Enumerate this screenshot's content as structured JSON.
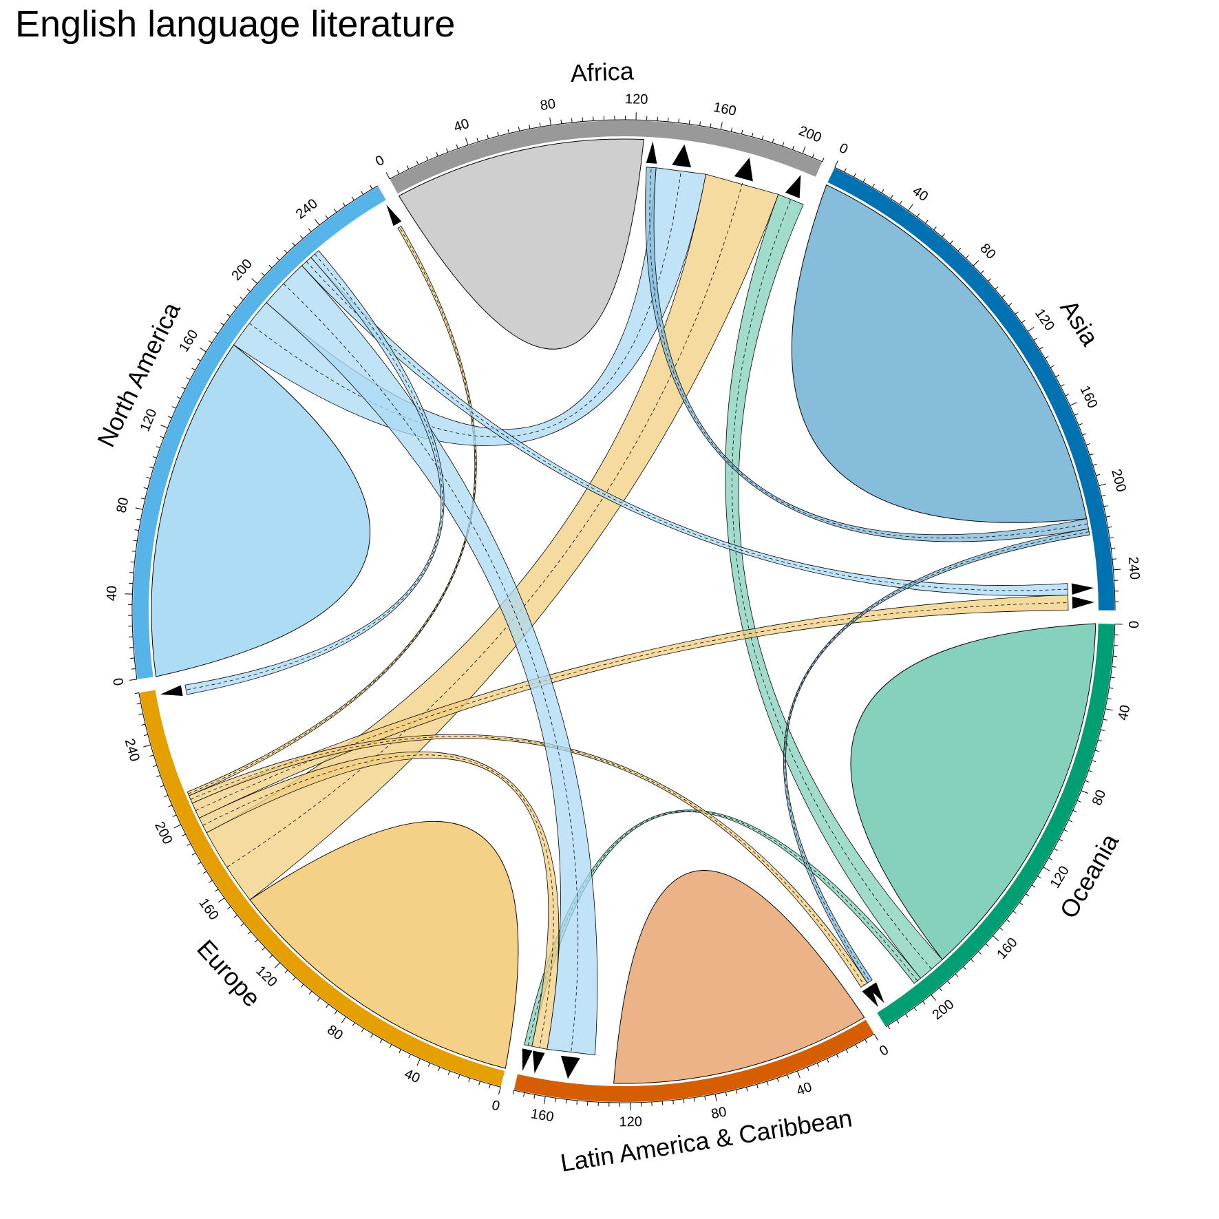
{
  "chart_data": {
    "type": "chord",
    "title": "English language literature",
    "colors": {
      "Oceania": "#009E73",
      "Latin America & Caribbean": "#D55E00",
      "Europe": "#E69F00",
      "North America": "#56B4E9",
      "Africa": "#999999",
      "Asia": "#0072B2"
    },
    "sectors": [
      {
        "name": "Oceania",
        "total": 226,
        "tick_labels": [
          "0",
          "40",
          "80",
          "120",
          "160",
          "200"
        ]
      },
      {
        "name": "Latin America & Caribbean",
        "total": 175,
        "tick_labels": [
          "0",
          "40",
          "80",
          "120",
          "160"
        ]
      },
      {
        "name": "Europe",
        "total": 265,
        "tick_labels": [
          "0",
          "40",
          "80",
          "120",
          "160",
          "200",
          "240"
        ]
      },
      {
        "name": "North America",
        "total": 273,
        "tick_labels": [
          "0",
          "40",
          "80",
          "120",
          "160",
          "200",
          "240"
        ]
      },
      {
        "name": "Africa",
        "total": 210,
        "tick_labels": [
          "0",
          "40",
          "80",
          "120",
          "160",
          "200"
        ]
      },
      {
        "name": "Asia",
        "total": 259,
        "tick_labels": [
          "0",
          "40",
          "80",
          "120",
          "160",
          "200",
          "240"
        ]
      }
    ],
    "flows": [
      {
        "from": "Oceania",
        "to": "Oceania",
        "value": 185
      },
      {
        "from": "Oceania",
        "to": "Africa",
        "value": 14
      },
      {
        "from": "Oceania",
        "to": "Latin America & Caribbean",
        "value": 4
      },
      {
        "from": "Latin America & Caribbean",
        "to": "Latin America & Caribbean",
        "value": 128
      },
      {
        "from": "Europe",
        "to": "Europe",
        "value": 152
      },
      {
        "from": "Europe",
        "to": "Africa",
        "value": 39
      },
      {
        "from": "Europe",
        "to": "Latin America & Caribbean",
        "value": 8
      },
      {
        "from": "Europe",
        "to": "Asia",
        "value": 8
      },
      {
        "from": "Europe",
        "to": "Oceania",
        "value": 4
      },
      {
        "from": "Europe",
        "to": "North America",
        "value": 2
      },
      {
        "from": "North America",
        "to": "North America",
        "value": 170
      },
      {
        "from": "North America",
        "to": "Africa",
        "value": 26
      },
      {
        "from": "North America",
        "to": "Latin America & Caribbean",
        "value": 25
      },
      {
        "from": "North America",
        "to": "Asia",
        "value": 6
      },
      {
        "from": "North America",
        "to": "Europe",
        "value": 5
      },
      {
        "from": "Africa",
        "to": "Africa",
        "value": 124
      },
      {
        "from": "Asia",
        "to": "Asia",
        "value": 214
      },
      {
        "from": "Asia",
        "to": "Africa",
        "value": 5
      },
      {
        "from": "Asia",
        "to": "Oceania",
        "value": 3
      }
    ]
  }
}
